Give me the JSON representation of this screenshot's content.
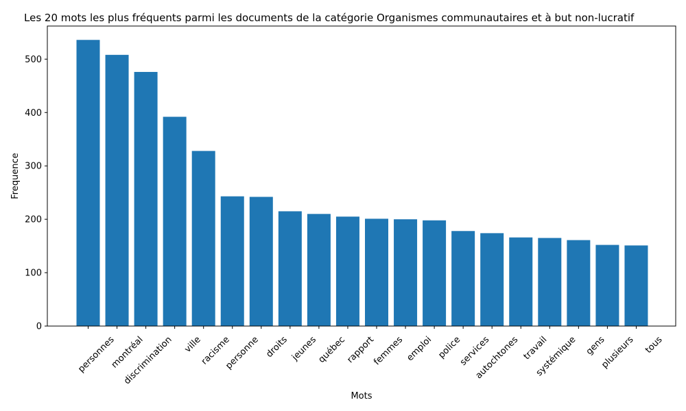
{
  "chart_data": {
    "type": "bar",
    "title": "Les 20 mots les plus fréquents parmi les documents de la catégorie Organismes communautaires et à but non-lucratif",
    "xlabel": "Mots",
    "ylabel": "Frequence",
    "categories": [
      "personnes",
      "montréal",
      "discrimination",
      "ville",
      "racisme",
      "personne",
      "droits",
      "jeunes",
      "québec",
      "rapport",
      "femmes",
      "emploi",
      "police",
      "services",
      "autochtones",
      "travail",
      "systémique",
      "gens",
      "plusieurs",
      "tous"
    ],
    "values": [
      536,
      508,
      476,
      392,
      328,
      243,
      242,
      215,
      210,
      205,
      201,
      200,
      198,
      178,
      174,
      166,
      165,
      161,
      152,
      151
    ],
    "ylim": [
      0,
      562
    ],
    "yticks": [
      0,
      100,
      200,
      300,
      400,
      500
    ],
    "grid": false,
    "bar_color": "#1f77b4"
  }
}
